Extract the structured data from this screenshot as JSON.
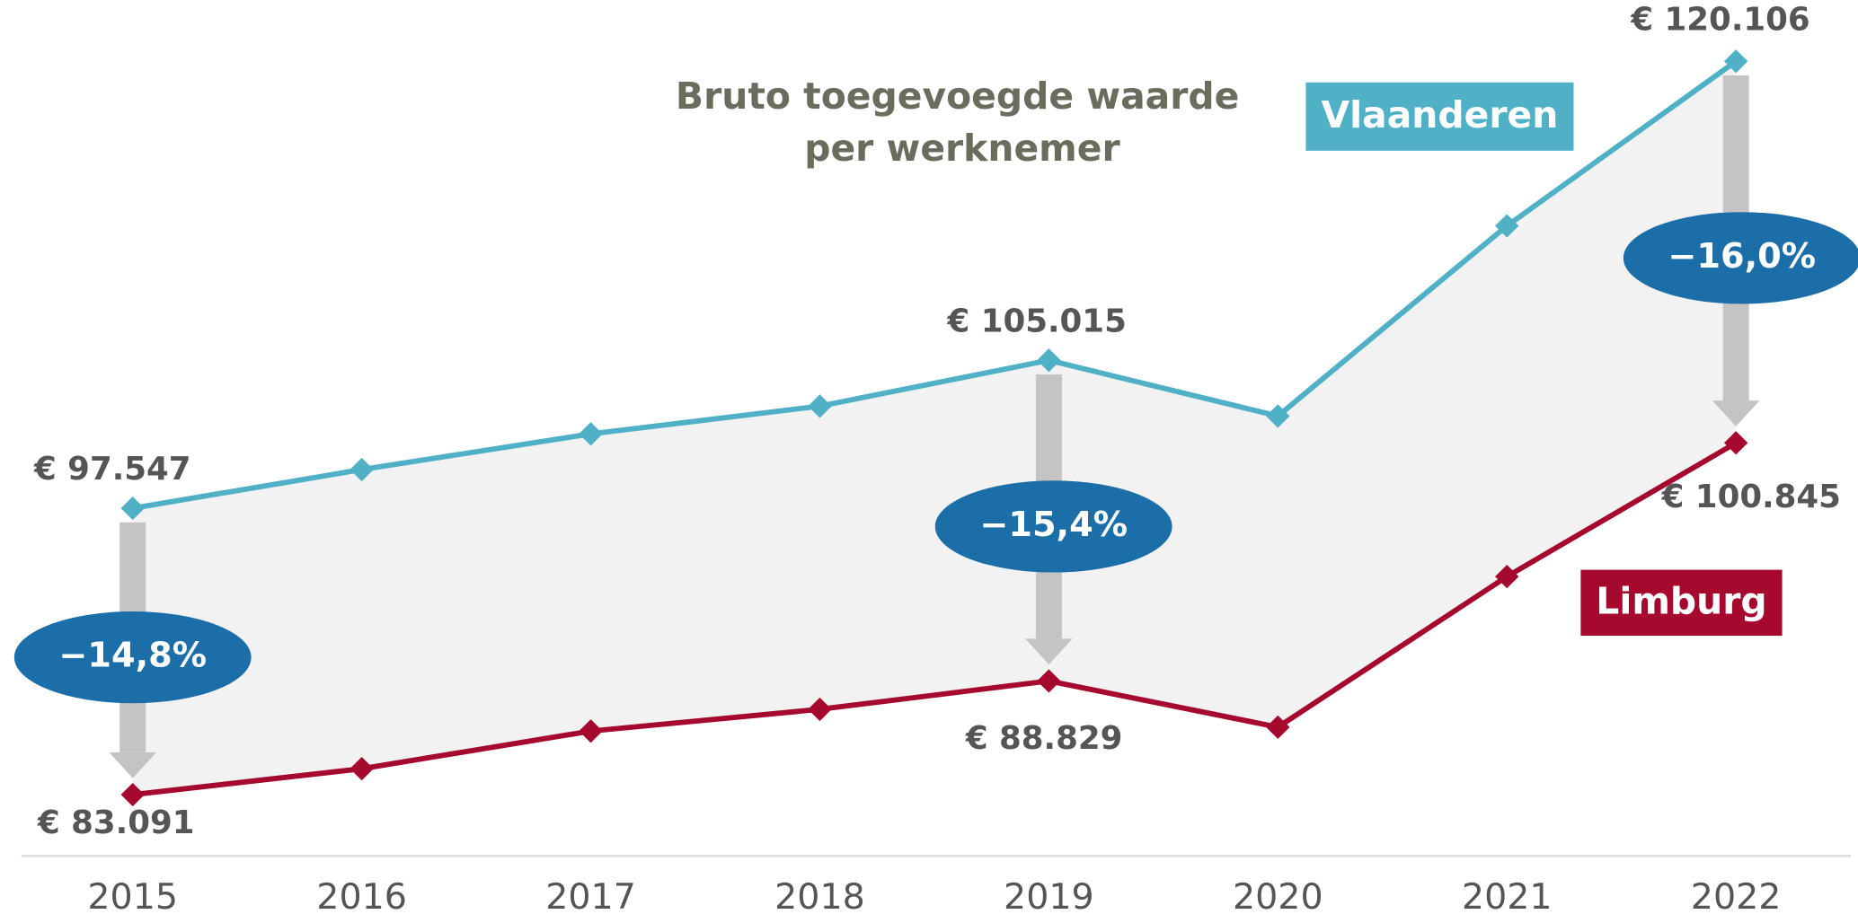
{
  "chart_data": {
    "type": "line",
    "title": [
      "Bruto toegevoegde waarde",
      "per werknemer"
    ],
    "categories": [
      "2015",
      "2016",
      "2017",
      "2018",
      "2019",
      "2020",
      "2021",
      "2022"
    ],
    "ylim": [
      80000,
      123200
    ],
    "series": [
      {
        "name": "Vlaanderen",
        "color": "#4fb0c6",
        "values": [
          97547,
          99500,
          101300,
          102700,
          105015,
          102200,
          111800,
          120106
        ],
        "value_labels": [
          "€ 97.547",
          null,
          null,
          null,
          "€ 105.015",
          null,
          null,
          "€ 120.106"
        ]
      },
      {
        "name": "Limburg",
        "color": "#a50a2e",
        "values": [
          83091,
          84400,
          86300,
          87400,
          88829,
          86500,
          94100,
          100845
        ],
        "value_labels": [
          "€ 83.091",
          null,
          null,
          null,
          "€ 88.829",
          null,
          null,
          "€ 100.845"
        ]
      }
    ],
    "differences": {
      "categories": [
        "2015",
        "2019",
        "2022"
      ],
      "values": [
        -14.8,
        -15.4,
        -16.0
      ],
      "value_labels": [
        "−14,8%",
        "−15,4%",
        "−16,0%"
      ],
      "color": "#1b6ea8"
    }
  }
}
